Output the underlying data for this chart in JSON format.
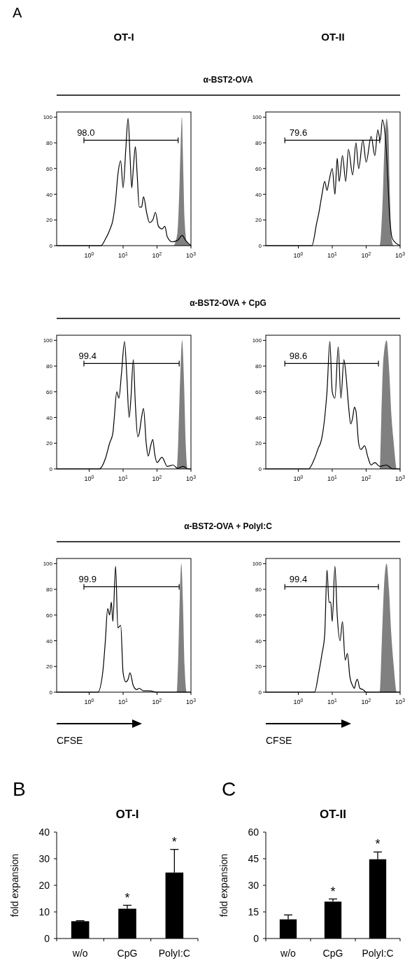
{
  "chart_data": [
    {
      "type": "other",
      "annotations": [
        "A",
        "OT-I",
        "OT-II"
      ]
    },
    {
      "type": "other",
      "title": "α-BST2-OVA"
    },
    {
      "type": "area",
      "annotations": [
        {
          "text": "98.0",
          "x": 0.8,
          "y": 82
        }
      ],
      "log": "x",
      "xlim": [
        0.11,
        1000
      ],
      "ylim": [
        0,
        104
      ],
      "xticks": [
        {
          "value": 1,
          "label": "10$^{0}$"
        },
        {
          "value": 10,
          "label": "10$^{1}$"
        },
        {
          "value": 100,
          "label": "10$^{2}$"
        },
        {
          "value": 1000,
          "label": "10$^{3}$"
        }
      ],
      "yticks": [
        0,
        20,
        40,
        60,
        80,
        100
      ],
      "series": [
        {
          "type": "area",
          "color": "#808080",
          "x": [
            0.11,
            300,
            400,
            450,
            500,
            540,
            580,
            650,
            750,
            1000
          ],
          "values": [
            0,
            0,
            10,
            40,
            80,
            100,
            70,
            20,
            3,
            0
          ]
        },
        {
          "type": "line",
          "color": "#000000",
          "x": [
            0.11,
            2.2,
            3,
            4,
            5,
            6,
            7,
            8.5,
            10,
            12,
            14,
            16,
            18,
            20,
            23,
            26,
            30,
            35,
            40,
            50,
            60,
            75,
            90,
            110,
            140,
            170,
            200,
            280,
            400,
            550,
            700,
            1000
          ],
          "values": [
            0,
            0,
            5,
            12,
            20,
            35,
            55,
            66,
            45,
            75,
            99,
            70,
            45,
            60,
            77,
            55,
            30,
            30,
            38,
            25,
            18,
            20,
            26,
            15,
            13,
            15,
            7,
            3,
            4,
            8,
            4,
            0
          ]
        },
        {
          "type": "line",
          "color": "#000000",
          "x": [
            0.7,
            420
          ],
          "values": [
            82,
            82
          ]
        }
      ]
    },
    {
      "type": "area",
      "annotations": [
        {
          "text": "79.6",
          "x": 1,
          "y": 82
        }
      ],
      "log": "x",
      "xlim": [
        0.11,
        1000
      ],
      "ylim": [
        0,
        104
      ],
      "xticks": [
        {
          "value": 1,
          "label": "10$^{0}$"
        },
        {
          "value": 10,
          "label": "10$^{1}$"
        },
        {
          "value": 100,
          "label": "10$^{2}$"
        },
        {
          "value": 1000,
          "label": "10$^{3}$"
        }
      ],
      "yticks": [
        0,
        20,
        40,
        60,
        80,
        100
      ],
      "series": [
        {
          "type": "area",
          "color": "#808080",
          "x": [
            0.11,
            250,
            300,
            350,
            400,
            450,
            500,
            560,
            650,
            1000
          ],
          "values": [
            0,
            0,
            30,
            80,
            99,
            90,
            40,
            5,
            0,
            0
          ]
        },
        {
          "type": "line",
          "color": "#000000",
          "x": [
            0.11,
            2.5,
            3.5,
            4,
            5,
            6,
            7,
            8,
            10,
            12,
            14,
            16,
            20,
            25,
            30,
            40,
            50,
            60,
            80,
            100,
            140,
            180,
            220,
            260,
            300,
            350,
            400,
            500,
            600,
            1000
          ],
          "values": [
            0,
            0,
            18,
            25,
            40,
            50,
            43,
            50,
            60,
            40,
            68,
            50,
            70,
            50,
            75,
            55,
            80,
            60,
            82,
            65,
            85,
            70,
            90,
            82,
            98,
            90,
            70,
            20,
            5,
            0
          ]
        },
        {
          "type": "line",
          "color": "#000000",
          "x": [
            0.4,
            250
          ],
          "values": [
            82,
            82
          ]
        }
      ]
    },
    {
      "type": "other",
      "title": "α-BST2-OVA + CpG"
    },
    {
      "type": "area",
      "annotations": [
        {
          "text": "99.4",
          "x": 0.9,
          "y": 82
        }
      ],
      "log": "x",
      "xlim": [
        0.11,
        1000
      ],
      "ylim": [
        0,
        104
      ],
      "xticks": [
        {
          "value": 1,
          "label": "10$^{0}$"
        },
        {
          "value": 10,
          "label": "10$^{1}$"
        },
        {
          "value": 100,
          "label": "10$^{2}$"
        },
        {
          "value": 1000,
          "label": "10$^{3}$"
        }
      ],
      "yticks": [
        0,
        20,
        40,
        60,
        80,
        100
      ],
      "series": [
        {
          "type": "line",
          "color": "#000000",
          "x": [
            0.7,
            450
          ],
          "values": [
            82,
            82
          ]
        },
        {
          "type": "area",
          "color": "#808080",
          "x": [
            0.11,
            380,
            420,
            480,
            550,
            620,
            700,
            800,
            1000
          ],
          "values": [
            0,
            0,
            20,
            70,
            100,
            70,
            20,
            0,
            0
          ]
        },
        {
          "type": "line",
          "color": "#000000",
          "x": [
            0.11,
            2,
            3,
            4,
            5,
            5.5,
            6.5,
            7.5,
            9,
            11,
            13,
            15,
            17,
            20,
            23,
            27,
            30,
            35,
            40,
            48,
            55,
            65,
            75,
            85,
            100,
            140,
            200,
            300,
            400,
            600,
            800,
            1000
          ],
          "values": [
            0,
            0,
            8,
            20,
            28,
            40,
            60,
            55,
            75,
            99,
            70,
            40,
            55,
            85,
            50,
            25,
            28,
            40,
            47,
            20,
            10,
            18,
            23,
            12,
            5,
            9,
            2,
            3,
            0.5,
            2,
            0,
            0
          ]
        }
      ]
    },
    {
      "type": "area",
      "annotations": [
        {
          "text": "98.6",
          "x": 1,
          "y": 82
        }
      ],
      "log": "x",
      "xlim": [
        0.11,
        1000
      ],
      "ylim": [
        0,
        104
      ],
      "xticks": [
        {
          "value": 1,
          "label": "10$^{0}$"
        },
        {
          "value": 10,
          "label": "10$^{1}$"
        },
        {
          "value": 100,
          "label": "10$^{2}$"
        },
        {
          "value": 1000,
          "label": "10$^{3}$"
        }
      ],
      "yticks": [
        0,
        20,
        40,
        60,
        80,
        100
      ],
      "series": [
        {
          "type": "line",
          "color": "#000000",
          "x": [
            0.4,
            230
          ],
          "values": [
            82,
            82
          ]
        },
        {
          "type": "area",
          "color": "#808080",
          "x": [
            0.11,
            250,
            280,
            320,
            400,
            480,
            560,
            650,
            800,
            1000
          ],
          "values": [
            0,
            0,
            40,
            85,
            100,
            75,
            40,
            20,
            0,
            0
          ]
        },
        {
          "type": "line",
          "color": "#000000",
          "x": [
            0.11,
            2,
            3,
            4,
            4.5,
            5,
            6,
            7,
            8.5,
            10,
            12,
            15,
            18,
            22,
            25,
            30,
            35,
            40,
            45,
            50,
            60,
            70,
            90,
            110,
            140,
            180,
            250,
            400,
            600,
            1000
          ],
          "values": [
            0,
            0,
            8,
            17,
            20,
            25,
            40,
            60,
            99,
            60,
            55,
            95,
            55,
            85,
            75,
            50,
            35,
            40,
            48,
            45,
            20,
            15,
            18,
            10,
            3,
            5,
            2,
            3,
            0,
            0
          ]
        }
      ]
    },
    {
      "type": "other",
      "title": "α-BST2-OVA + PolyI:C"
    },
    {
      "type": "area",
      "xlabel": "CFSE",
      "annotations": [
        {
          "text": "99.9",
          "x": 0.9,
          "y": 82
        }
      ],
      "log": "x",
      "xlim": [
        0.11,
        1000
      ],
      "ylim": [
        0,
        104
      ],
      "xticks": [
        {
          "value": 1,
          "label": "10$^{0}$"
        },
        {
          "value": 10,
          "label": "10$^{1}$"
        },
        {
          "value": 100,
          "label": "10$^{2}$"
        },
        {
          "value": 1000,
          "label": "10$^{3}$"
        }
      ],
      "yticks": [
        0,
        20,
        40,
        60,
        80,
        100
      ],
      "series": [
        {
          "type": "area",
          "color": "#808080",
          "x": [
            0.11,
            380,
            420,
            470,
            520,
            580,
            650,
            750,
            1000
          ],
          "values": [
            0,
            0,
            25,
            75,
            100,
            70,
            20,
            0,
            0
          ]
        },
        {
          "type": "line",
          "color": "#000000",
          "x": [
            0.11,
            1.8,
            2.5,
            3,
            3.5,
            4,
            4.5,
            5,
            6,
            7,
            8.5,
            10,
            12,
            14,
            16,
            20,
            25,
            30,
            40,
            60,
            100,
            1000
          ],
          "values": [
            0,
            0,
            15,
            40,
            65,
            60,
            70,
            55,
            98,
            50,
            52,
            15,
            8,
            10,
            15,
            5,
            2,
            3,
            1,
            1,
            0,
            0
          ]
        },
        {
          "type": "line",
          "color": "#000000",
          "x": [
            0.7,
            450
          ],
          "values": [
            82,
            82
          ]
        }
      ]
    },
    {
      "type": "area",
      "xlabel": "CFSE",
      "annotations": [
        {
          "text": "99.4",
          "x": 1,
          "y": 82
        }
      ],
      "log": "x",
      "xlim": [
        0.11,
        1000
      ],
      "ylim": [
        0,
        104
      ],
      "xticks": [
        {
          "value": 1,
          "label": "10$^{0}$"
        },
        {
          "value": 10,
          "label": "10$^{1}$"
        },
        {
          "value": 100,
          "label": "10$^{2}$"
        },
        {
          "value": 1000,
          "label": "10$^{3}$"
        }
      ],
      "yticks": [
        0,
        20,
        40,
        60,
        80,
        100
      ],
      "series": [
        {
          "type": "area",
          "color": "#808080",
          "x": [
            0.11,
            250,
            290,
            340,
            400,
            470,
            550,
            650,
            800,
            1000
          ],
          "values": [
            0,
            0,
            40,
            85,
            100,
            80,
            45,
            20,
            0,
            0
          ]
        },
        {
          "type": "line",
          "color": "#000000",
          "x": [
            0.11,
            3,
            4,
            5,
            6,
            7,
            8,
            9,
            10,
            12,
            14,
            17,
            20,
            24,
            28,
            33,
            40,
            45,
            50,
            55,
            65,
            80,
            100,
            1000
          ],
          "values": [
            0,
            0,
            15,
            30,
            45,
            95,
            70,
            70,
            55,
            98,
            60,
            40,
            55,
            25,
            30,
            12,
            5,
            3,
            8,
            10,
            3,
            2,
            0,
            0
          ]
        },
        {
          "type": "line",
          "color": "#000000",
          "x": [
            0.4,
            230
          ],
          "values": [
            82,
            82
          ]
        }
      ]
    },
    {
      "type": "bar",
      "title": "OT-I",
      "ylabel": "fold expansion",
      "annotations": [
        "B",
        "*",
        "*"
      ],
      "categories": [
        "w/o",
        "CpG",
        "PolyI:C"
      ],
      "values": [
        6.5,
        11.2,
        24.8
      ],
      "errors": [
        0.2,
        1.3,
        8.7
      ],
      "color": "#000000",
      "ylim": [
        0,
        40
      ],
      "yticks": [
        0,
        10,
        20,
        30,
        40
      ]
    },
    {
      "type": "bar",
      "title": "OT-II",
      "ylabel": "fold expansion",
      "annotations": [
        "C",
        "*",
        "*"
      ],
      "categories": [
        "w/o",
        "CpG",
        "PolyI:C"
      ],
      "values": [
        10.8,
        20.8,
        44.7
      ],
      "errors": [
        2.5,
        1.5,
        4.1
      ],
      "color": "#000000",
      "ylim": [
        0,
        60
      ],
      "yticks": [
        0,
        15,
        30,
        45,
        60
      ]
    }
  ]
}
